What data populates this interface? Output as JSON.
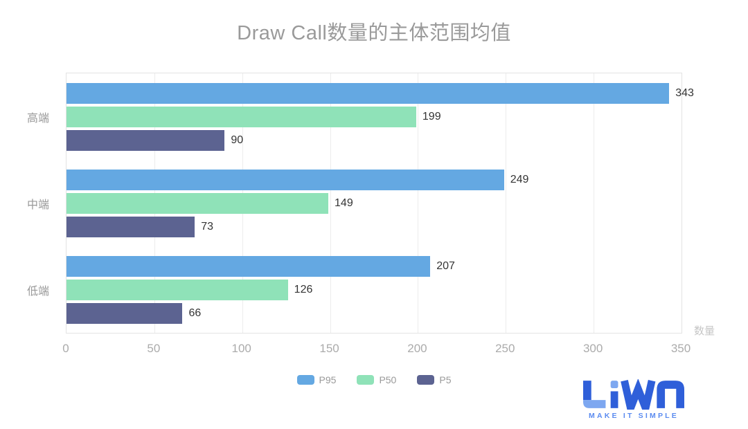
{
  "title": "Draw Call数量的主体范围均值",
  "chart_data": {
    "type": "bar",
    "orientation": "horizontal",
    "title": "Draw Call数量的主体范围均值",
    "categories": [
      "高端",
      "中端",
      "低端"
    ],
    "series": [
      {
        "name": "P95",
        "color": "#64a8e2",
        "values": [
          343,
          249,
          207
        ]
      },
      {
        "name": "P50",
        "color": "#8fe2b8",
        "values": [
          199,
          149,
          126
        ]
      },
      {
        "name": "P5",
        "color": "#5c6391",
        "values": [
          90,
          73,
          66
        ]
      }
    ],
    "xlabel": "数量",
    "x_ticks": [
      0,
      50,
      100,
      150,
      200,
      250,
      300,
      350
    ],
    "xlim": [
      0,
      350
    ],
    "grid": true,
    "legend_position": "bottom",
    "value_labels": true
  },
  "colors": {
    "title_text": "#9a9a9a",
    "axis_text": "#ababab",
    "category_text": "#999999",
    "value_text": "#333333",
    "gridline": "#ececec",
    "plot_border": "#e3e3e3"
  },
  "logo": {
    "text": "LiWA",
    "tagline": "MAKE IT SIMPLE",
    "primary_color": "#2f5fd9",
    "accent_color": "#7da7f0"
  }
}
